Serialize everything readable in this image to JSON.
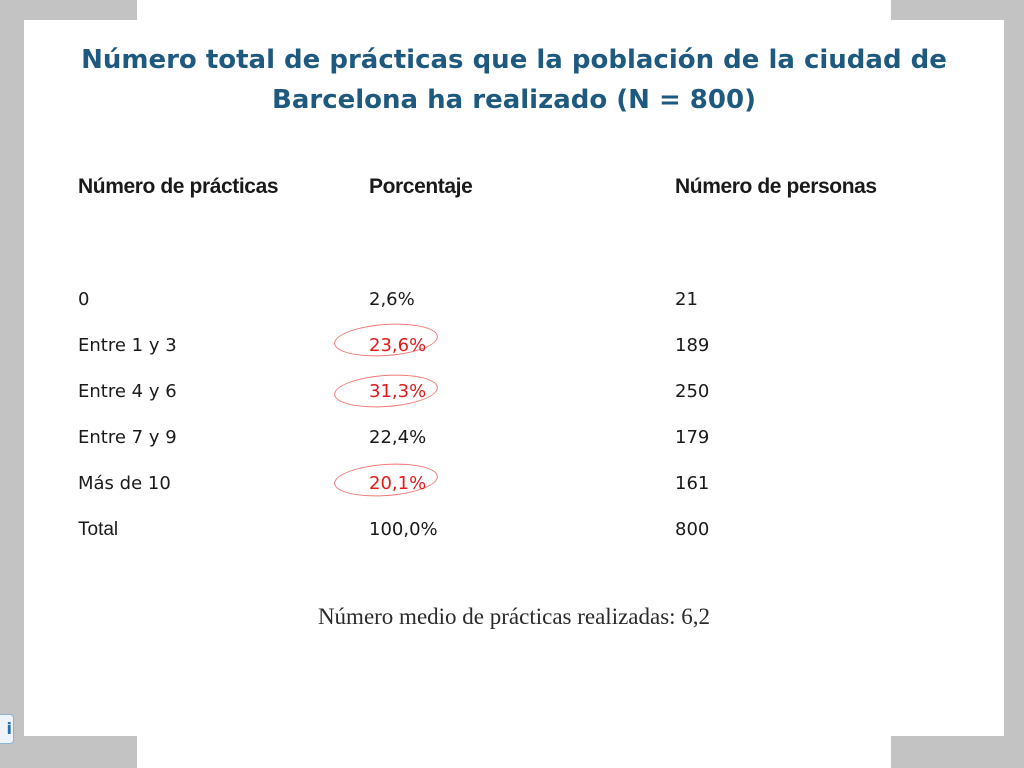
{
  "title": {
    "line1": "Número total de prácticas que la población de la ciudad de",
    "line2": "Barcelona ha realizado (N = 800)"
  },
  "table": {
    "headers": [
      "Número de prácticas",
      "Porcentaje",
      "Número de personas"
    ],
    "rows": [
      {
        "practicas": "0",
        "porcentaje": "2,6%",
        "personas": "21",
        "highlighted": false
      },
      {
        "practicas": "Entre 1 y 3",
        "porcentaje": "23,6%",
        "personas": "189",
        "highlighted": true
      },
      {
        "practicas": "Entre 4 y 6",
        "porcentaje": "31,3%",
        "personas": "250",
        "highlighted": true
      },
      {
        "practicas": "Entre 7 y 9",
        "porcentaje": "22,4%",
        "personas": "179",
        "highlighted": false
      },
      {
        "practicas": "Más de 10",
        "porcentaje": "20,1%",
        "personas": "161",
        "highlighted": true
      },
      {
        "practicas": "Total",
        "porcentaje": "100,0%",
        "personas": "800",
        "highlighted": false
      }
    ]
  },
  "footer_note": "Número medio de prácticas realizadas: 6,2",
  "corner_widget": {
    "icon": "viewer-logo-icon",
    "glyph": "i"
  },
  "colors": {
    "title": "#1e5a80",
    "highlight_text": "#e01b1b",
    "highlight_circle": "#ef7a7a",
    "body_text": "#1a1a1a"
  }
}
